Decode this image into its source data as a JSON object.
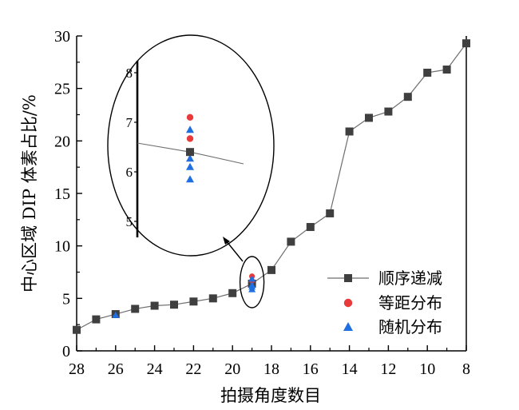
{
  "chart_data": {
    "type": "line",
    "title": "",
    "xlabel": "拍摄角度数目",
    "ylabel": "中心区域 DIP 体素占比/%",
    "xlim": [
      28,
      8
    ],
    "ylim": [
      0,
      30
    ],
    "x_reversed": true,
    "xticks": [
      "28",
      "26",
      "24",
      "22",
      "20",
      "18",
      "16",
      "14",
      "12",
      "10",
      "8"
    ],
    "yticks": [
      "0",
      "5",
      "10",
      "15",
      "20",
      "25",
      "30"
    ],
    "grid": false,
    "legend_position": "bottom-right",
    "series": [
      {
        "name": "顺序递减",
        "marker": "square",
        "color": "#3f3f3f",
        "x": [
          28,
          27,
          26,
          25,
          24,
          23,
          22,
          21,
          20,
          19,
          18,
          17,
          16,
          15,
          14,
          13,
          12,
          11,
          10,
          9,
          8
        ],
        "y": [
          2.0,
          3.0,
          3.5,
          4.0,
          4.3,
          4.4,
          4.7,
          5.0,
          5.5,
          6.4,
          7.7,
          10.4,
          11.8,
          13.1,
          20.9,
          22.2,
          22.8,
          24.2,
          26.5,
          26.8,
          29.3
        ]
      },
      {
        "name": "等距分布",
        "marker": "circle",
        "color": "#e83a3a",
        "x": [
          19,
          19
        ],
        "y": [
          7.1,
          6.67
        ]
      },
      {
        "name": "随机分布",
        "marker": "triangle",
        "color": "#1f6fe0",
        "x": [
          26,
          19,
          19,
          19,
          19
        ],
        "y": [
          3.4,
          6.85,
          6.27,
          6.1,
          5.85
        ]
      }
    ],
    "inset": {
      "type": "zoom",
      "x": 19,
      "ylim": [
        4.5,
        8.5
      ],
      "yticks": [
        "5",
        "6",
        "7",
        "8"
      ]
    },
    "colors": {
      "axis": "#000000",
      "line": "#6e6e6e"
    }
  }
}
